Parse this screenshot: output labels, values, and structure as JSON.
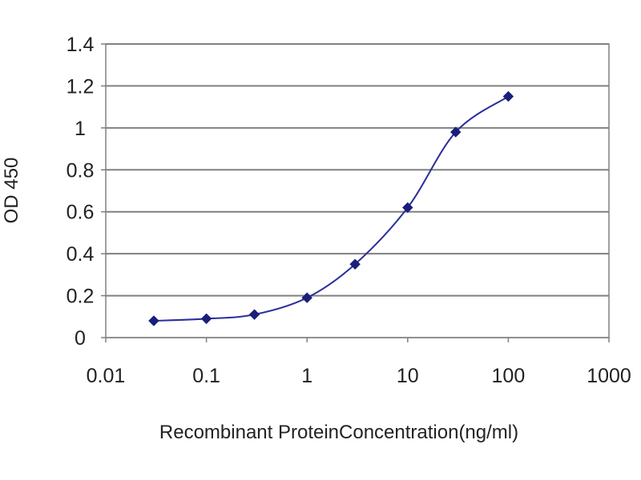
{
  "chart_data": {
    "type": "line",
    "title": "",
    "xlabel": "Recombinant ProteinConcentration(ng/ml)",
    "ylabel": "OD 450",
    "x_scale": "log",
    "xlim": [
      0.01,
      1000
    ],
    "ylim": [
      0,
      1.4
    ],
    "x_ticks": [
      "0.01",
      "0.1",
      "1",
      "10",
      "100",
      "1000"
    ],
    "y_ticks": [
      "0",
      "0.2",
      "0.4",
      "0.6",
      "0.8",
      "1",
      "1.2",
      "1.4"
    ],
    "grid": "horizontal",
    "legend": "none",
    "series": [
      {
        "x": [
          0.03,
          0.1,
          0.3,
          1,
          3,
          10,
          30,
          100
        ],
        "y": [
          0.08,
          0.09,
          0.11,
          0.19,
          0.35,
          0.62,
          0.98,
          1.15
        ]
      }
    ],
    "colors": {
      "line": "#2b2f9a",
      "marker": "#1a1f7a",
      "gridline": "#808080",
      "plot_background": "#ffffff",
      "frame": "#808080"
    }
  }
}
